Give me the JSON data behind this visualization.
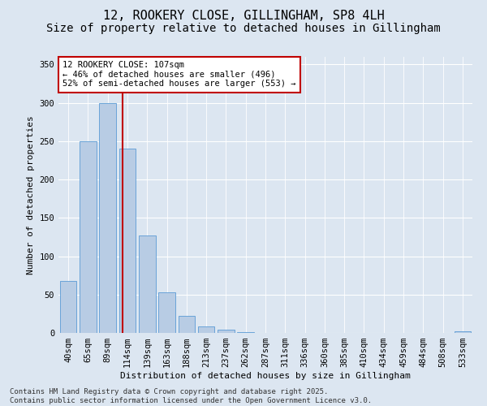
{
  "title1": "12, ROOKERY CLOSE, GILLINGHAM, SP8 4LH",
  "title2": "Size of property relative to detached houses in Gillingham",
  "xlabel": "Distribution of detached houses by size in Gillingham",
  "ylabel": "Number of detached properties",
  "categories": [
    "40sqm",
    "65sqm",
    "89sqm",
    "114sqm",
    "139sqm",
    "163sqm",
    "188sqm",
    "213sqm",
    "237sqm",
    "262sqm",
    "287sqm",
    "311sqm",
    "336sqm",
    "360sqm",
    "385sqm",
    "410sqm",
    "434sqm",
    "459sqm",
    "484sqm",
    "508sqm",
    "533sqm"
  ],
  "values": [
    68,
    250,
    300,
    240,
    127,
    53,
    22,
    9,
    4,
    1,
    0,
    0,
    0,
    0,
    0,
    0,
    0,
    0,
    0,
    0,
    2
  ],
  "bar_color": "#b8cce4",
  "bar_edge_color": "#5b9bd5",
  "vline_x": 2.75,
  "vline_color": "#c00000",
  "annotation_text": "12 ROOKERY CLOSE: 107sqm\n← 46% of detached houses are smaller (496)\n52% of semi-detached houses are larger (553) →",
  "annotation_box_color": "#ffffff",
  "annotation_box_edge": "#c00000",
  "ylim": [
    0,
    360
  ],
  "yticks": [
    0,
    50,
    100,
    150,
    200,
    250,
    300,
    350
  ],
  "background_color": "#dce6f1",
  "plot_background": "#dce6f1",
  "footer": "Contains HM Land Registry data © Crown copyright and database right 2025.\nContains public sector information licensed under the Open Government Licence v3.0.",
  "title_fontsize": 11,
  "subtitle_fontsize": 10,
  "axis_label_fontsize": 8,
  "tick_fontsize": 7.5,
  "annotation_fontsize": 7.5,
  "footer_fontsize": 6.5
}
